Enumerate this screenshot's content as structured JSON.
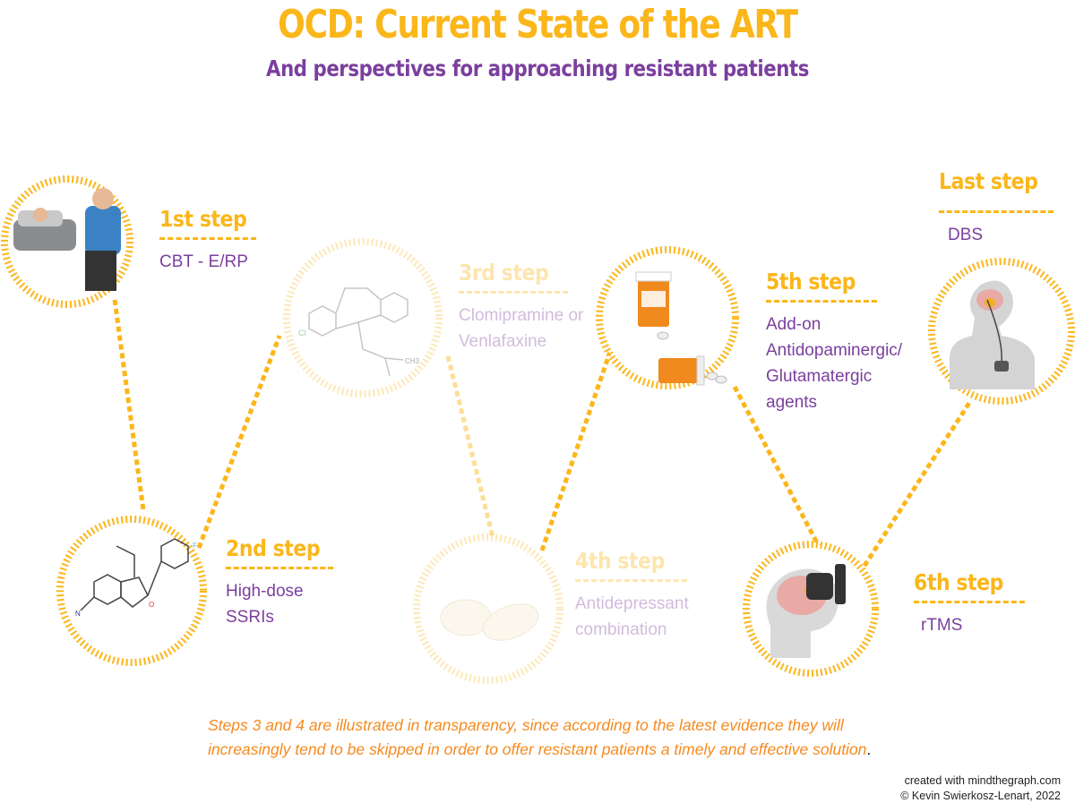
{
  "title": "OCD: Current State of the ART",
  "subtitle": "And perspectives for approaching resistant patients",
  "steps": [
    {
      "heading": "1st step",
      "text": "CBT - E/RP",
      "icon": "psychotherapy-session",
      "faded": false
    },
    {
      "heading": "2nd step",
      "text": "High-dose SSRIs",
      "icon": "ssri-molecule",
      "faded": false
    },
    {
      "heading": "3rd step",
      "text": "Clomipramine or Venlafaxine",
      "icon": "clomipramine-molecule",
      "faded": true
    },
    {
      "heading": "4th step",
      "text": "Antidepressant combination",
      "icon": "pills",
      "faded": true
    },
    {
      "heading": "5th step",
      "text": "Add-on Antidopaminergic/ Glutamatergic agents",
      "icon": "pill-bottles",
      "faded": false
    },
    {
      "heading": "6th step",
      "text": "rTMS",
      "icon": "tms-coil-brain",
      "faded": false
    },
    {
      "heading": "Last step",
      "text": "DBS",
      "icon": "dbs-implant",
      "faded": false
    }
  ],
  "molecule_labels": {
    "cl": "Cl",
    "n": "N",
    "ch3": "CH3",
    "f": "F",
    "o": "O"
  },
  "note": {
    "text": "Steps 3 and 4 are illustrated in transparency, since according to the latest evidence they will increasingly tend to be skipped in order to offer resistant patients a timely and effective solution",
    "end": "."
  },
  "credit": {
    "line1": "created with mindthegraph.com",
    "line2": "© Kevin Swierkosz-Lenart, 2022"
  },
  "colors": {
    "accent": "#fbb61a",
    "purple": "#7b3f9e",
    "note": "#f58a1f"
  }
}
